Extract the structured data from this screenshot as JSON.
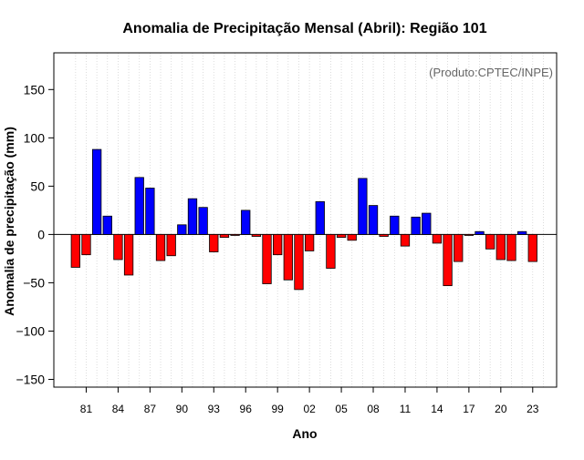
{
  "chart_data": {
    "type": "bar",
    "title": "Anomalia de Precipitação Mensal (Abril): Região 101",
    "xlabel": "Ano",
    "ylabel": "Anomalia de precipitação (mm)",
    "annotation": "(Produto:CPTEC/INPE)",
    "ylim": [
      -158,
      188
    ],
    "y_ticks": [
      -150,
      -100,
      -50,
      0,
      50,
      100,
      150
    ],
    "x_tick_labels": [
      "81",
      "84",
      "87",
      "90",
      "93",
      "96",
      "99",
      "02",
      "05",
      "08",
      "11",
      "14",
      "17",
      "20",
      "23"
    ],
    "categories": [
      "1980",
      "1981",
      "1982",
      "1983",
      "1984",
      "1985",
      "1986",
      "1987",
      "1988",
      "1989",
      "1990",
      "1991",
      "1992",
      "1993",
      "1994",
      "1995",
      "1996",
      "1997",
      "1998",
      "1999",
      "2000",
      "2001",
      "2002",
      "2003",
      "2004",
      "2005",
      "2006",
      "2007",
      "2008",
      "2009",
      "2010",
      "2011",
      "2012",
      "2013",
      "2014",
      "2015",
      "2016",
      "2017",
      "2018",
      "2019",
      "2020",
      "2021",
      "2022",
      "2023",
      "2024"
    ],
    "values": [
      -34,
      -21,
      88,
      19,
      -26,
      -42,
      59,
      48,
      -27,
      -22,
      10,
      37,
      28,
      -18,
      -3,
      -1,
      25,
      -2,
      -51,
      -21,
      -47,
      -57,
      -17,
      34,
      -35,
      -3,
      -6,
      58,
      30,
      -2,
      19,
      -12,
      18,
      22,
      -9,
      -53,
      -28,
      -1,
      3,
      -15,
      -26,
      -27,
      3,
      -28,
      0
    ],
    "grid": true,
    "colors": {
      "positive": "#0000ff",
      "negative": "#ff0000",
      "grid": "#d3d3d3",
      "zero_line": "#000000"
    }
  }
}
